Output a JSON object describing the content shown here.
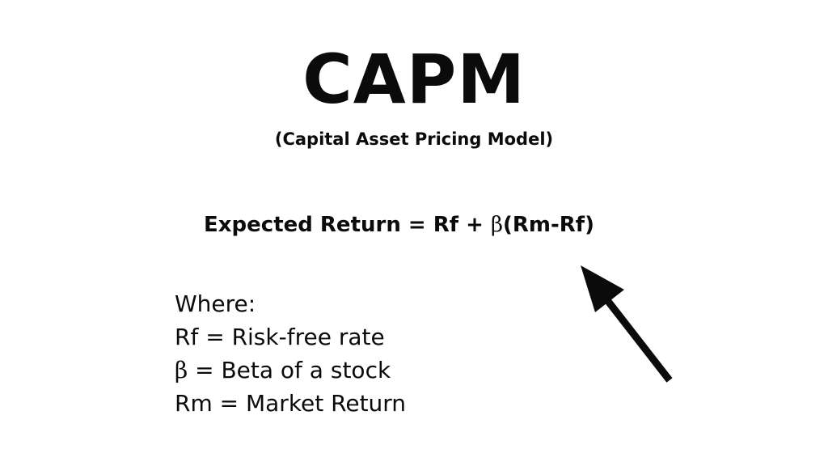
{
  "slide": {
    "title": "CAPM",
    "subtitle": "(Capital Asset Pricing Model)",
    "formula": {
      "left": "Expected Return = Rf + ",
      "beta_symbol": "β",
      "right": "(Rm-Rf)"
    },
    "definitions": {
      "heading": "Where:",
      "rf": "Rf = Risk-free rate",
      "beta_symbol": "β",
      "beta_text": " = Beta of a stock",
      "rm": "Rm = Market Return"
    },
    "icons": {
      "arrow": "arrow-up-left-icon"
    },
    "colors": {
      "background": "#ffffff",
      "text": "#0b0b0b"
    }
  }
}
